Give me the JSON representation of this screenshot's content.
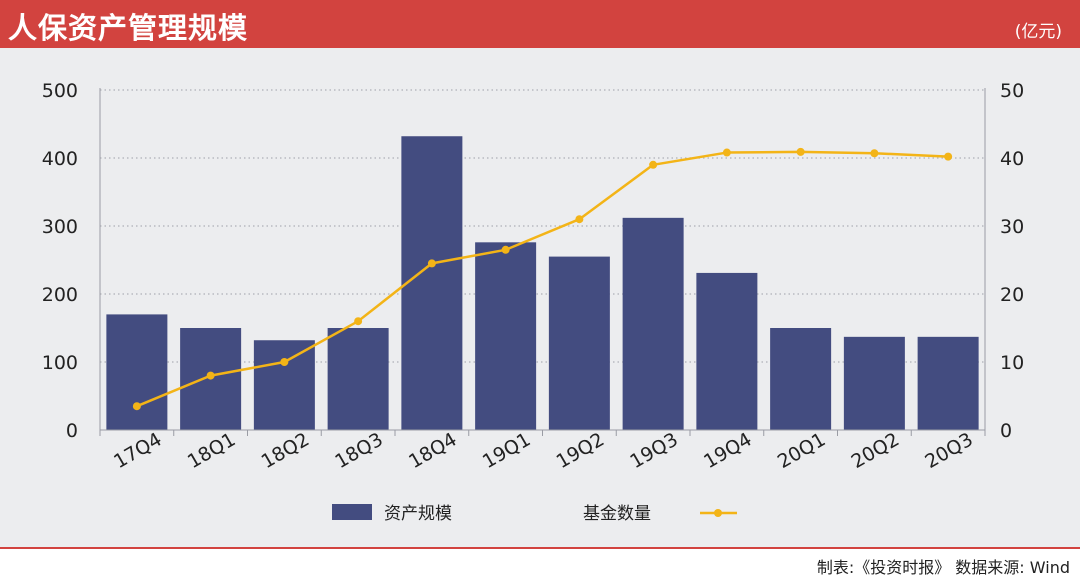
{
  "header": {
    "title": "人保资产管理规模",
    "unit": "(亿元)"
  },
  "footer": {
    "source": "制表:《投资时报》 数据来源: Wind"
  },
  "colors": {
    "title_bar": "#d2433f",
    "bar": "#434c80",
    "line": "#f3b417",
    "panel": "#ecedef"
  },
  "chart_data": {
    "type": "bar+line",
    "categories": [
      "17Q4",
      "18Q1",
      "18Q2",
      "18Q3",
      "18Q4",
      "19Q1",
      "19Q2",
      "19Q3",
      "19Q4",
      "20Q1",
      "20Q2",
      "20Q3"
    ],
    "series": [
      {
        "name": "资产规模",
        "type": "bar",
        "axis": "left",
        "values": [
          170,
          150,
          132,
          150,
          432,
          276,
          255,
          312,
          231,
          150,
          137,
          137
        ]
      },
      {
        "name": "基金数量",
        "type": "line",
        "axis": "right",
        "values": [
          3.5,
          8,
          10,
          16,
          24.5,
          26.5,
          31,
          39,
          40.8,
          40.9,
          40.7,
          40.2
        ]
      }
    ],
    "left_axis": {
      "ylim": [
        0,
        500
      ],
      "ticks": [
        "0",
        "100",
        "200",
        "300",
        "400",
        "500"
      ]
    },
    "right_axis": {
      "ylim": [
        0,
        50
      ],
      "ticks": [
        "0",
        "10",
        "20",
        "30",
        "40",
        "50"
      ]
    },
    "grid": "horizontal dotted",
    "legend": "bottom"
  }
}
